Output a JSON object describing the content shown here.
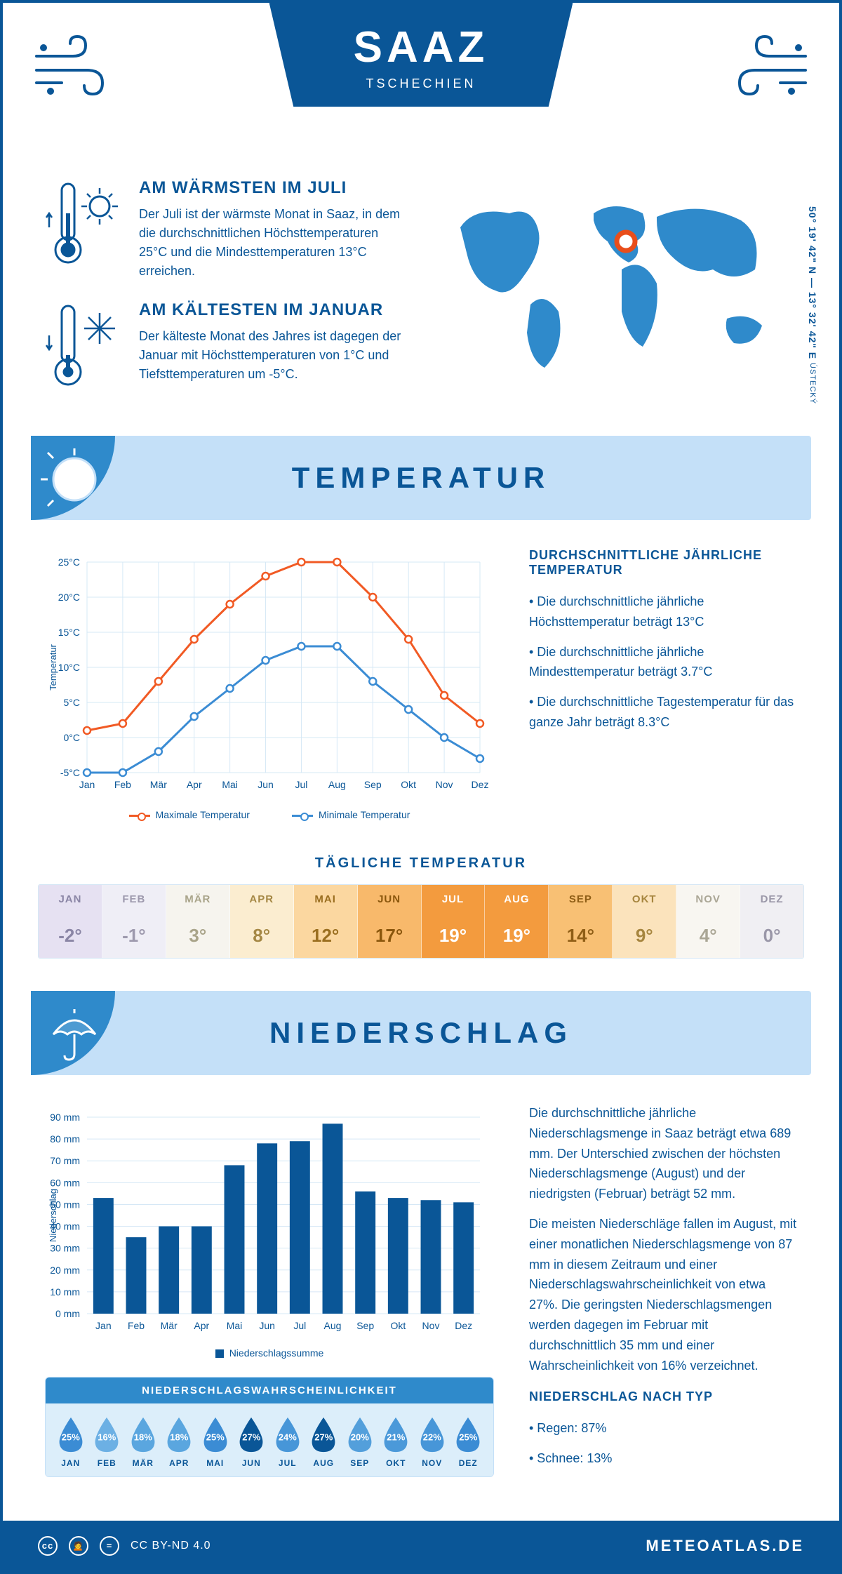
{
  "hero": {
    "title": "SAAZ",
    "subtitle": "TSCHECHIEN"
  },
  "coords": {
    "text": "50° 19' 42\" N — 13° 32' 42\" E",
    "region": "ÚSTECKÝ"
  },
  "warmest": {
    "title": "AM WÄRMSTEN IM JULI",
    "text": "Der Juli ist der wärmste Monat in Saaz, in dem die durchschnittlichen Höchsttemperaturen 25°C und die Mindesttemperaturen 13°C erreichen."
  },
  "coldest": {
    "title": "AM KÄLTESTEN IM JANUAR",
    "text": "Der kälteste Monat des Jahres ist dagegen der Januar mit Höchsttemperaturen von 1°C und Tiefsttemperaturen um -5°C."
  },
  "temp_section": {
    "heading": "TEMPERATUR",
    "chart": {
      "months": [
        "Jan",
        "Feb",
        "Mär",
        "Apr",
        "Mai",
        "Jun",
        "Jul",
        "Aug",
        "Sep",
        "Okt",
        "Nov",
        "Dez"
      ],
      "max": [
        1,
        2,
        8,
        14,
        19,
        23,
        25,
        25,
        20,
        14,
        6,
        2
      ],
      "min": [
        -5,
        -5,
        -2,
        3,
        7,
        11,
        13,
        13,
        8,
        4,
        0,
        -3
      ],
      "ylim": [
        -5,
        25
      ],
      "ytick_step": 5,
      "ylabel": "Temperatur",
      "color_max": "#f15a24",
      "color_min": "#3b8cd4",
      "grid_color": "#d6e8f6",
      "legend_max": "Maximale Temperatur",
      "legend_min": "Minimale Temperatur"
    },
    "summary": {
      "title": "DURCHSCHNITTLICHE JÄHRLICHE TEMPERATUR",
      "bullets": [
        "• Die durchschnittliche jährliche Höchsttemperatur beträgt 13°C",
        "• Die durchschnittliche jährliche Mindesttemperatur beträgt 3.7°C",
        "• Die durchschnittliche Tagestemperatur für das ganze Jahr beträgt 8.3°C"
      ]
    },
    "daily": {
      "title": "TÄGLICHE TEMPERATUR",
      "months": [
        "JAN",
        "FEB",
        "MÄR",
        "APR",
        "MAI",
        "JUN",
        "JUL",
        "AUG",
        "SEP",
        "OKT",
        "NOV",
        "DEZ"
      ],
      "values": [
        "-2°",
        "-1°",
        "3°",
        "8°",
        "12°",
        "17°",
        "19°",
        "19°",
        "14°",
        "9°",
        "4°",
        "0°"
      ],
      "colors": [
        "#e6e1f2",
        "#efeef6",
        "#f6f4ee",
        "#fbedd0",
        "#fbd7a0",
        "#f8b96b",
        "#f39b3e",
        "#f39b3e",
        "#f8c074",
        "#fbe3bc",
        "#f8f6f1",
        "#f0eff3"
      ],
      "text_colors": [
        "#8a85a5",
        "#9d99ad",
        "#a9a48a",
        "#a58845",
        "#9a6e1f",
        "#8a560c",
        "#ffffff",
        "#ffffff",
        "#8f5e16",
        "#a6853e",
        "#aaa695",
        "#9a97a8"
      ]
    }
  },
  "precip_section": {
    "heading": "NIEDERSCHLAG",
    "chart": {
      "months": [
        "Jan",
        "Feb",
        "Mär",
        "Apr",
        "Mai",
        "Jun",
        "Jul",
        "Aug",
        "Sep",
        "Okt",
        "Nov",
        "Dez"
      ],
      "values": [
        53,
        35,
        40,
        40,
        68,
        78,
        79,
        87,
        56,
        53,
        52,
        51
      ],
      "ylim": [
        0,
        90
      ],
      "ytick_step": 10,
      "ylabel": "Niederschlag",
      "bar_color": "#0a5697",
      "grid_color": "#d6e8f6",
      "legend": "Niederschlagssumme"
    },
    "text1": "Die durchschnittliche jährliche Niederschlagsmenge in Saaz beträgt etwa 689 mm. Der Unterschied zwischen der höchsten Niederschlagsmenge (August) und der niedrigsten (Februar) beträgt 52 mm.",
    "text2": "Die meisten Niederschläge fallen im August, mit einer monatlichen Niederschlagsmenge von 87 mm in diesem Zeitraum und einer Niederschlagswahrscheinlichkeit von etwa 27%. Die geringsten Niederschlagsmengen werden dagegen im Februar mit durchschnittlich 35 mm und einer Wahrscheinlichkeit von 16% verzeichnet.",
    "by_type_title": "NIEDERSCHLAG NACH TYP",
    "by_type": [
      "• Regen: 87%",
      "• Schnee: 13%"
    ],
    "prob": {
      "title": "NIEDERSCHLAGSWAHRSCHEINLICHKEIT",
      "months": [
        "JAN",
        "FEB",
        "MÄR",
        "APR",
        "MAI",
        "JUN",
        "JUL",
        "AUG",
        "SEP",
        "OKT",
        "NOV",
        "DEZ"
      ],
      "values": [
        "25%",
        "16%",
        "18%",
        "18%",
        "25%",
        "27%",
        "24%",
        "27%",
        "20%",
        "21%",
        "22%",
        "25%"
      ],
      "colors": [
        "#3b8cd4",
        "#6cb0e4",
        "#5aa6df",
        "#5aa6df",
        "#3b8cd4",
        "#0a5697",
        "#4796d8",
        "#0a5697",
        "#539fdb",
        "#4b99d9",
        "#4796d8",
        "#3b8cd4"
      ]
    }
  },
  "footer": {
    "license": "CC BY-ND 4.0",
    "brand": "METEOATLAS.DE"
  }
}
